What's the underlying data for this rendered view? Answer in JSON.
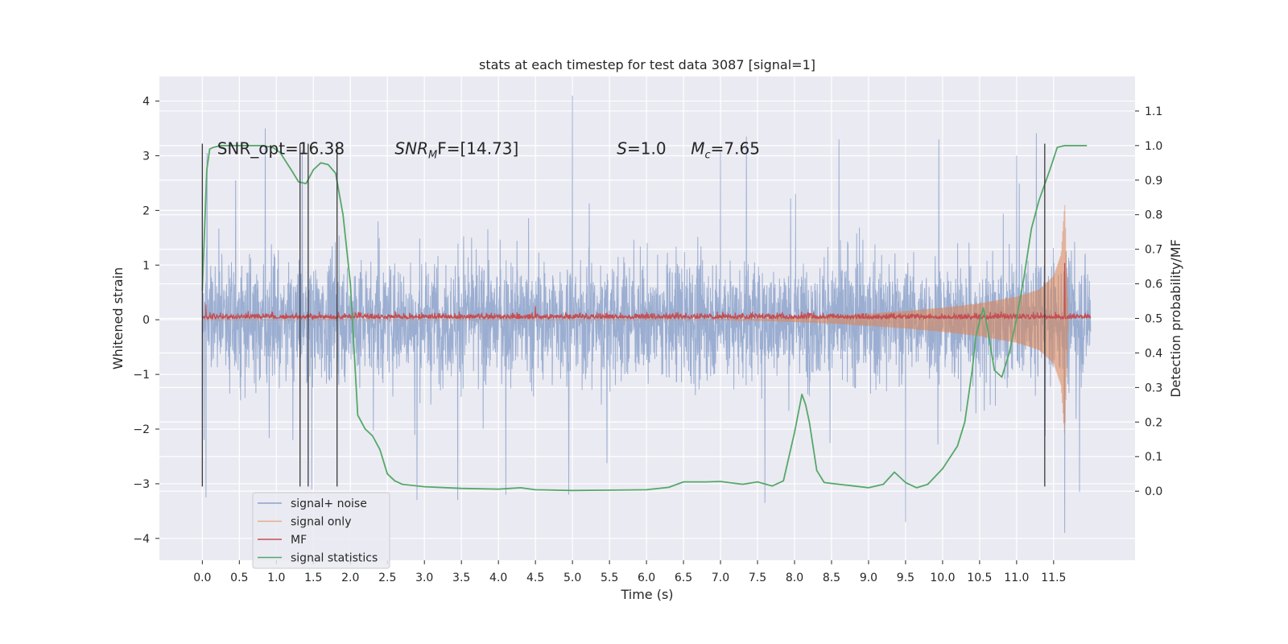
{
  "chart_data": {
    "type": "line",
    "title": "stats at each timestep for test data 3087 [signal=1]",
    "xlabel": "Time (s)",
    "ylabel_left": "Whitened strain",
    "ylabel_right": "Detection probability/MF",
    "xlim": [
      -0.58,
      12.6
    ],
    "ylim_left": [
      -4.4,
      4.45
    ],
    "ylim_right": [
      -0.2,
      1.2
    ],
    "x_ticks": [
      0.0,
      0.5,
      1.0,
      1.5,
      2.0,
      2.5,
      3.0,
      3.5,
      4.0,
      4.5,
      5.0,
      5.5,
      6.0,
      6.5,
      7.0,
      7.5,
      8.0,
      8.5,
      9.0,
      9.5,
      10.0,
      10.5,
      11.0,
      11.5
    ],
    "x_tick_labels": [
      "0.0",
      "0.5",
      "1.0",
      "1.5",
      "2.0",
      "2.5",
      "3.0",
      "3.5",
      "4.0",
      "4.5",
      "5.0",
      "5.5",
      "6.0",
      "6.5",
      "7.0",
      "7.5",
      "8.0",
      "8.5",
      "9.0",
      "9.5",
      "10.0",
      "10.5",
      "11.0",
      "11.5"
    ],
    "y_left_ticks": [
      -4,
      -3,
      -2,
      -1,
      0,
      1,
      2,
      3,
      4
    ],
    "y_left_tick_labels": [
      "−4",
      "−3",
      "−2",
      "−1",
      "0",
      "1",
      "2",
      "3",
      "4"
    ],
    "y_right_ticks": [
      0.0,
      0.1,
      0.2,
      0.3,
      0.4,
      0.5,
      0.6,
      0.7,
      0.8,
      0.9,
      1.0,
      1.1
    ],
    "y_right_tick_labels": [
      "0.0",
      "0.1",
      "0.2",
      "0.3",
      "0.4",
      "0.5",
      "0.6",
      "0.7",
      "0.8",
      "0.9",
      "1.0",
      "1.1"
    ],
    "grid": true,
    "legend_position": "lower-left",
    "series": [
      {
        "name": "signal+ noise",
        "axis": "left",
        "color": "#4c72b0",
        "time_range": [
          0.0,
          12.0
        ],
        "typical_amplitude": 1.35,
        "peaks": [
          [
            0.0,
            2.3
          ],
          [
            0.05,
            -3.25
          ],
          [
            0.45,
            2.55
          ],
          [
            0.85,
            3.5
          ],
          [
            1.35,
            3.1
          ],
          [
            1.48,
            -3.1
          ],
          [
            2.9,
            -3.3
          ],
          [
            3.45,
            -3.3
          ],
          [
            4.1,
            -3.2
          ],
          [
            5.0,
            4.1
          ],
          [
            4.95,
            -3.2
          ],
          [
            7.0,
            3.1
          ],
          [
            7.35,
            3.35
          ],
          [
            7.6,
            -3.35
          ],
          [
            8.6,
            3.3
          ],
          [
            9.5,
            -3.7
          ],
          [
            9.95,
            3.3
          ],
          [
            11.0,
            3.0
          ],
          [
            11.65,
            -3.9
          ],
          [
            11.85,
            3.75
          ],
          [
            11.85,
            -3.15
          ]
        ]
      },
      {
        "name": "signal only",
        "axis": "left",
        "color": "#dd8452",
        "envelope": [
          [
            0.0,
            0.0
          ],
          [
            7.0,
            0.0
          ],
          [
            7.5,
            0.02
          ],
          [
            8.0,
            0.04
          ],
          [
            8.5,
            0.07
          ],
          [
            9.0,
            0.11
          ],
          [
            9.5,
            0.16
          ],
          [
            10.0,
            0.22
          ],
          [
            10.5,
            0.3
          ],
          [
            11.0,
            0.42
          ],
          [
            11.3,
            0.55
          ],
          [
            11.5,
            0.8
          ],
          [
            11.6,
            1.2
          ],
          [
            11.65,
            2.15
          ],
          [
            11.7,
            0.0
          ]
        ]
      },
      {
        "name": "MF",
        "axis": "right",
        "color": "#c44e52",
        "baseline": 0.505,
        "typical_amplitude": 0.012,
        "spikes": [
          [
            0.05,
            0.54
          ],
          [
            4.5,
            0.535
          ],
          [
            11.65,
            0.66
          ]
        ]
      },
      {
        "name": "signal statistics",
        "axis": "right",
        "color": "#55a868",
        "x": [
          0.0,
          0.06,
          0.1,
          0.15,
          0.25,
          0.5,
          0.8,
          0.95,
          1.05,
          1.2,
          1.3,
          1.4,
          1.5,
          1.6,
          1.7,
          1.8,
          1.9,
          2.0,
          2.1,
          2.2,
          2.3,
          2.4,
          2.5,
          2.6,
          2.7,
          3.0,
          3.5,
          4.0,
          4.3,
          4.5,
          5.0,
          5.5,
          6.0,
          6.3,
          6.5,
          6.8,
          7.0,
          7.3,
          7.5,
          7.7,
          7.85,
          8.0,
          8.1,
          8.15,
          8.2,
          8.3,
          8.4,
          8.6,
          8.8,
          9.0,
          9.2,
          9.35,
          9.5,
          9.65,
          9.8,
          10.0,
          10.2,
          10.3,
          10.4,
          10.45,
          10.55,
          10.6,
          10.7,
          10.8,
          10.9,
          11.0,
          11.1,
          11.2,
          11.3,
          11.45,
          11.55,
          11.65,
          11.75,
          11.95
        ],
        "y": [
          0.58,
          0.93,
          0.99,
          0.995,
          1.0,
          1.0,
          1.0,
          0.995,
          0.98,
          0.93,
          0.895,
          0.89,
          0.93,
          0.95,
          0.945,
          0.92,
          0.8,
          0.6,
          0.22,
          0.18,
          0.16,
          0.12,
          0.05,
          0.03,
          0.02,
          0.013,
          0.008,
          0.006,
          0.01,
          0.004,
          0.002,
          0.003,
          0.004,
          0.011,
          0.027,
          0.027,
          0.028,
          0.02,
          0.027,
          0.015,
          0.03,
          0.17,
          0.28,
          0.25,
          0.2,
          0.06,
          0.025,
          0.02,
          0.015,
          0.01,
          0.02,
          0.055,
          0.025,
          0.01,
          0.02,
          0.065,
          0.13,
          0.2,
          0.35,
          0.45,
          0.53,
          0.48,
          0.35,
          0.33,
          0.4,
          0.5,
          0.62,
          0.76,
          0.84,
          0.93,
          0.995,
          1.0,
          1.0,
          1.0
        ]
      }
    ],
    "vlines": [
      {
        "x": 0.0,
        "y0": -3.05,
        "y1": 3.22
      },
      {
        "x": 1.32,
        "y0": -3.05,
        "y1": 3.22
      },
      {
        "x": 1.43,
        "y0": -3.05,
        "y1": 3.22
      },
      {
        "x": 1.82,
        "y0": -3.05,
        "y1": 3.22
      },
      {
        "x": 11.38,
        "y0": -3.05,
        "y1": 3.22
      }
    ],
    "annotations": [
      {
        "text": "SNR_opt=16.38",
        "x": 0.2,
        "y": 3.15
      },
      {
        "text": "SNR",
        "sub": "M",
        "after": "F=[14.73]",
        "italic": true,
        "x": 2.6,
        "y": 3.15
      },
      {
        "text": "S",
        "after": "=1.0",
        "italic": true,
        "x": 5.6,
        "y": 3.15
      },
      {
        "text": "M",
        "sub": "c",
        "after": "=7.65",
        "italic": true,
        "x": 6.6,
        "y": 3.15
      }
    ]
  }
}
